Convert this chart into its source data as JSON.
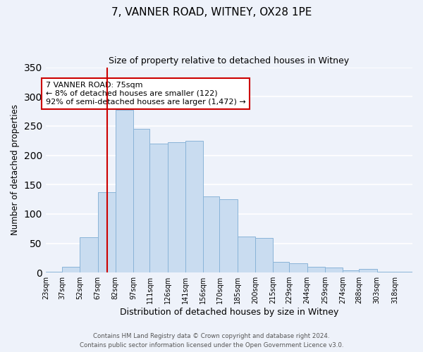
{
  "title": "7, VANNER ROAD, WITNEY, OX28 1PE",
  "subtitle": "Size of property relative to detached houses in Witney",
  "xlabel": "Distribution of detached houses by size in Witney",
  "ylabel": "Number of detached properties",
  "categories": [
    "23sqm",
    "37sqm",
    "52sqm",
    "67sqm",
    "82sqm",
    "97sqm",
    "111sqm",
    "126sqm",
    "141sqm",
    "156sqm",
    "170sqm",
    "185sqm",
    "200sqm",
    "215sqm",
    "229sqm",
    "244sqm",
    "259sqm",
    "274sqm",
    "288sqm",
    "303sqm",
    "318sqm"
  ],
  "values": [
    2,
    10,
    60,
    137,
    277,
    245,
    220,
    222,
    225,
    130,
    125,
    62,
    59,
    18,
    16,
    10,
    9,
    4,
    6,
    2,
    1
  ],
  "bar_color": "#c9dcf0",
  "bar_edge_color": "#8ab4d8",
  "vline_x": 75,
  "vline_color": "#cc0000",
  "ylim": [
    0,
    350
  ],
  "yticks": [
    0,
    50,
    100,
    150,
    200,
    250,
    300,
    350
  ],
  "annotation_text": "7 VANNER ROAD: 75sqm\n← 8% of detached houses are smaller (122)\n92% of semi-detached houses are larger (1,472) →",
  "footer1": "Contains HM Land Registry data © Crown copyright and database right 2024.",
  "footer2": "Contains public sector information licensed under the Open Government Licence v3.0.",
  "bin_edges": [
    23,
    37,
    52,
    67,
    82,
    97,
    111,
    126,
    141,
    156,
    170,
    185,
    200,
    215,
    229,
    244,
    259,
    274,
    288,
    303,
    318,
    333
  ],
  "bg_color": "#eef2fa",
  "grid_color": "#ffffff",
  "annotation_box_color": "#ffffff",
  "annotation_box_edge": "#cc0000"
}
